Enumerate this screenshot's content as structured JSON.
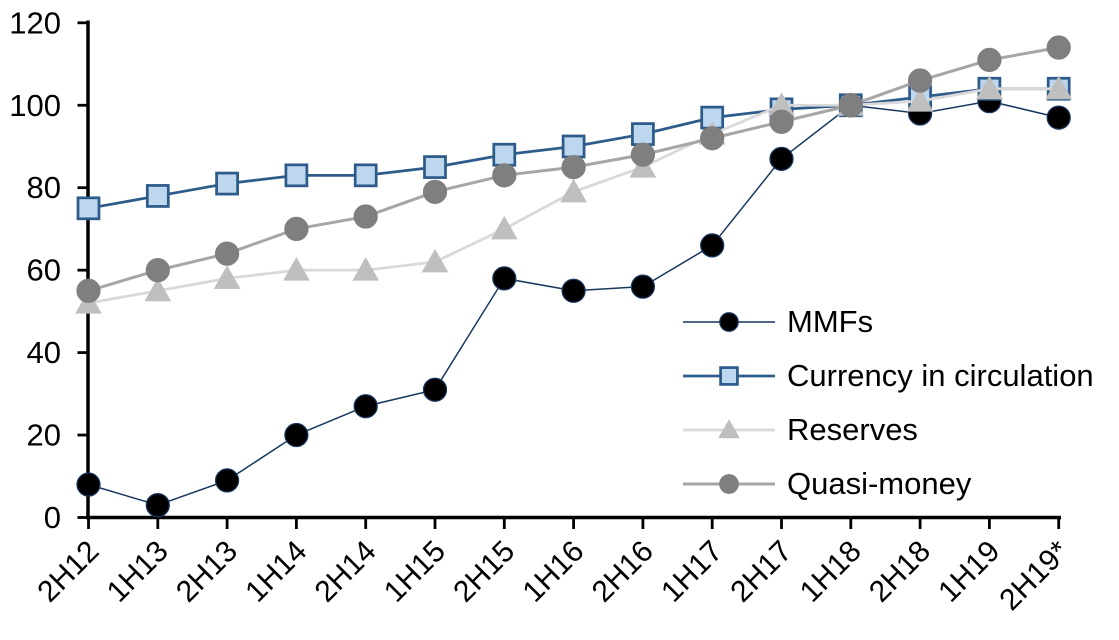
{
  "chart_data": {
    "type": "line",
    "title": "",
    "xlabel": "",
    "ylabel": "",
    "categories": [
      "2H12",
      "1H13",
      "2H13",
      "1H14",
      "2H14",
      "1H15",
      "2H15",
      "1H16",
      "2H16",
      "1H17",
      "2H17",
      "1H18",
      "2H18",
      "1H19",
      "2H19*"
    ],
    "series": [
      {
        "name": "MMFs",
        "values": [
          8,
          3,
          9,
          20,
          27,
          31,
          58,
          55,
          56,
          66,
          87,
          100,
          98,
          101,
          97
        ],
        "marker": "circle",
        "marker_fill": "#000000",
        "marker_stroke": "#17375E",
        "line_color": "#17375E",
        "line_width": 1.5
      },
      {
        "name": "Currency in circulation",
        "values": [
          75,
          78,
          81,
          83,
          83,
          85,
          88,
          90,
          93,
          97,
          99,
          100,
          102,
          104,
          104
        ],
        "marker": "square",
        "marker_fill": "#BDD7EE",
        "marker_stroke": "#2E5C8A",
        "line_color": "#2E5C8A",
        "line_width": 2.75
      },
      {
        "name": "Reserves",
        "values": [
          52,
          55,
          58,
          60,
          60,
          62,
          70,
          79,
          85,
          93,
          100,
          100,
          101,
          104,
          104
        ],
        "marker": "triangle",
        "marker_fill": "#BFBFBF",
        "marker_stroke": "#BFBFBF",
        "line_color": "#D9D9D9",
        "line_width": 2.75
      },
      {
        "name": "Quasi-money",
        "values": [
          55,
          60,
          64,
          70,
          73,
          79,
          83,
          85,
          88,
          92,
          96,
          100,
          106,
          111,
          114
        ],
        "marker": "circle",
        "marker_fill": "#7F7F7F",
        "marker_stroke": "#7F7F7F",
        "line_color": "#A6A6A6",
        "line_width": 3
      }
    ],
    "ylim": [
      0,
      120
    ],
    "yticks": [
      0,
      20,
      40,
      60,
      80,
      100,
      120
    ],
    "grid": false,
    "legend_position": "inside-right",
    "axis_color": "#000000",
    "background_color": "#FFFFFF"
  }
}
